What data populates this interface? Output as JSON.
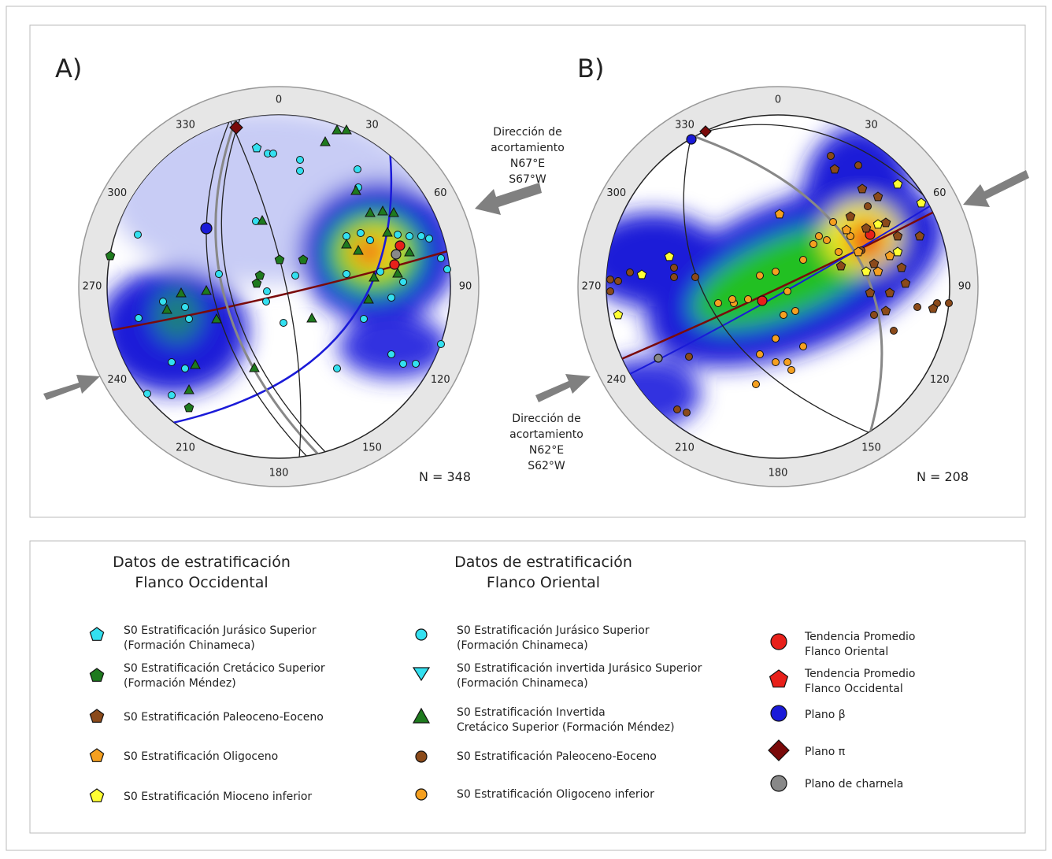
{
  "panels": [
    {
      "label": "A)",
      "azimuths": [
        0,
        30,
        60,
        90,
        120,
        150,
        180,
        210,
        240,
        270,
        300,
        330
      ],
      "count": "N = 348",
      "arrow_text": [
        "Dirección de",
        "acortamiento",
        "N67°E",
        "S67°W"
      ]
    },
    {
      "label": "B)",
      "azimuths": [
        0,
        30,
        60,
        90,
        120,
        150,
        180,
        210,
        240,
        270,
        300,
        330
      ],
      "count": "N = 208",
      "arrow_text": [
        "Dirección de",
        "acortamiento",
        "N62°E",
        "S62°W"
      ]
    }
  ],
  "legend": {
    "west": {
      "title": [
        "Datos de estratificación",
        "Flanco Occidental"
      ],
      "items": [
        [
          "S0 Estratificación Jurásico Superior",
          "(Formación Chinameca)"
        ],
        [
          "S0 Estratificación Cretácico Superior",
          "(Formación Méndez)"
        ],
        [
          "S0 Estratificación Paleoceno-Eoceno"
        ],
        [
          "S0 Estratificación Oligoceno"
        ],
        [
          "S0 Estratificación Mioceno inferior"
        ]
      ]
    },
    "east": {
      "title": [
        "Datos de estratificación",
        "Flanco Oriental"
      ],
      "items": [
        [
          "S0 Estratificación Jurásico Superior",
          "(Formación Chinameca)"
        ],
        [
          "S0 Estratificación invertida Jurásico Superior",
          "(Formación Chinameca)"
        ],
        [
          "S0 Estratificación Invertida",
          "Cretácico Superior (Formación Méndez)"
        ],
        [
          "S0 Estratificación Paleoceno-Eoceno"
        ],
        [
          "S0 Estratificación Oligoceno inferior"
        ]
      ]
    },
    "symbols": [
      [
        "Tendencia Promedio",
        "Flanco Oriental"
      ],
      [
        "Tendencia Promedio",
        "Flanco Occidental"
      ],
      [
        "Plano β"
      ],
      [
        "Plano π"
      ],
      [
        "Plano de charnela"
      ]
    ]
  }
}
